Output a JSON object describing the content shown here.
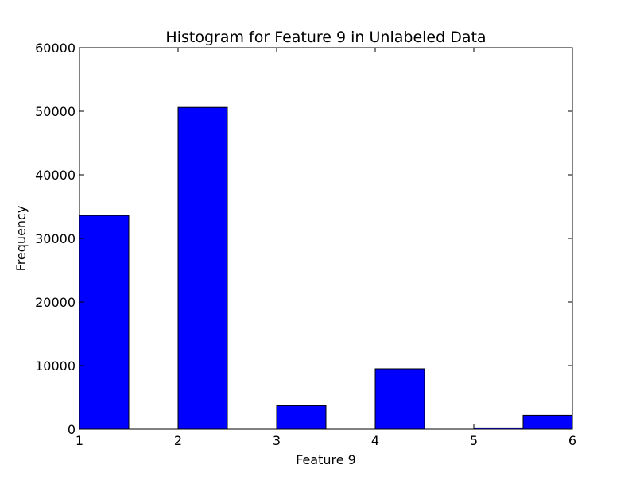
{
  "chart_data": {
    "type": "bar",
    "title": "Histogram for Feature 9 in Unlabeled Data",
    "xlabel": "Feature 9",
    "ylabel": "Frequency",
    "xlim": [
      1,
      6
    ],
    "ylim": [
      0,
      60000
    ],
    "x_ticks": [
      1,
      2,
      3,
      4,
      5,
      6
    ],
    "y_ticks": [
      0,
      10000,
      20000,
      30000,
      40000,
      50000,
      60000
    ],
    "bin_edges": [
      1.0,
      1.5,
      2.0,
      2.5,
      3.0,
      3.5,
      4.0,
      4.5,
      5.0,
      5.5,
      6.0
    ],
    "values": [
      33600,
      0,
      50600,
      0,
      3700,
      0,
      9500,
      0,
      200,
      2200
    ],
    "bar_color": "#0000ff",
    "edge_color": "#000000",
    "grid": false
  }
}
